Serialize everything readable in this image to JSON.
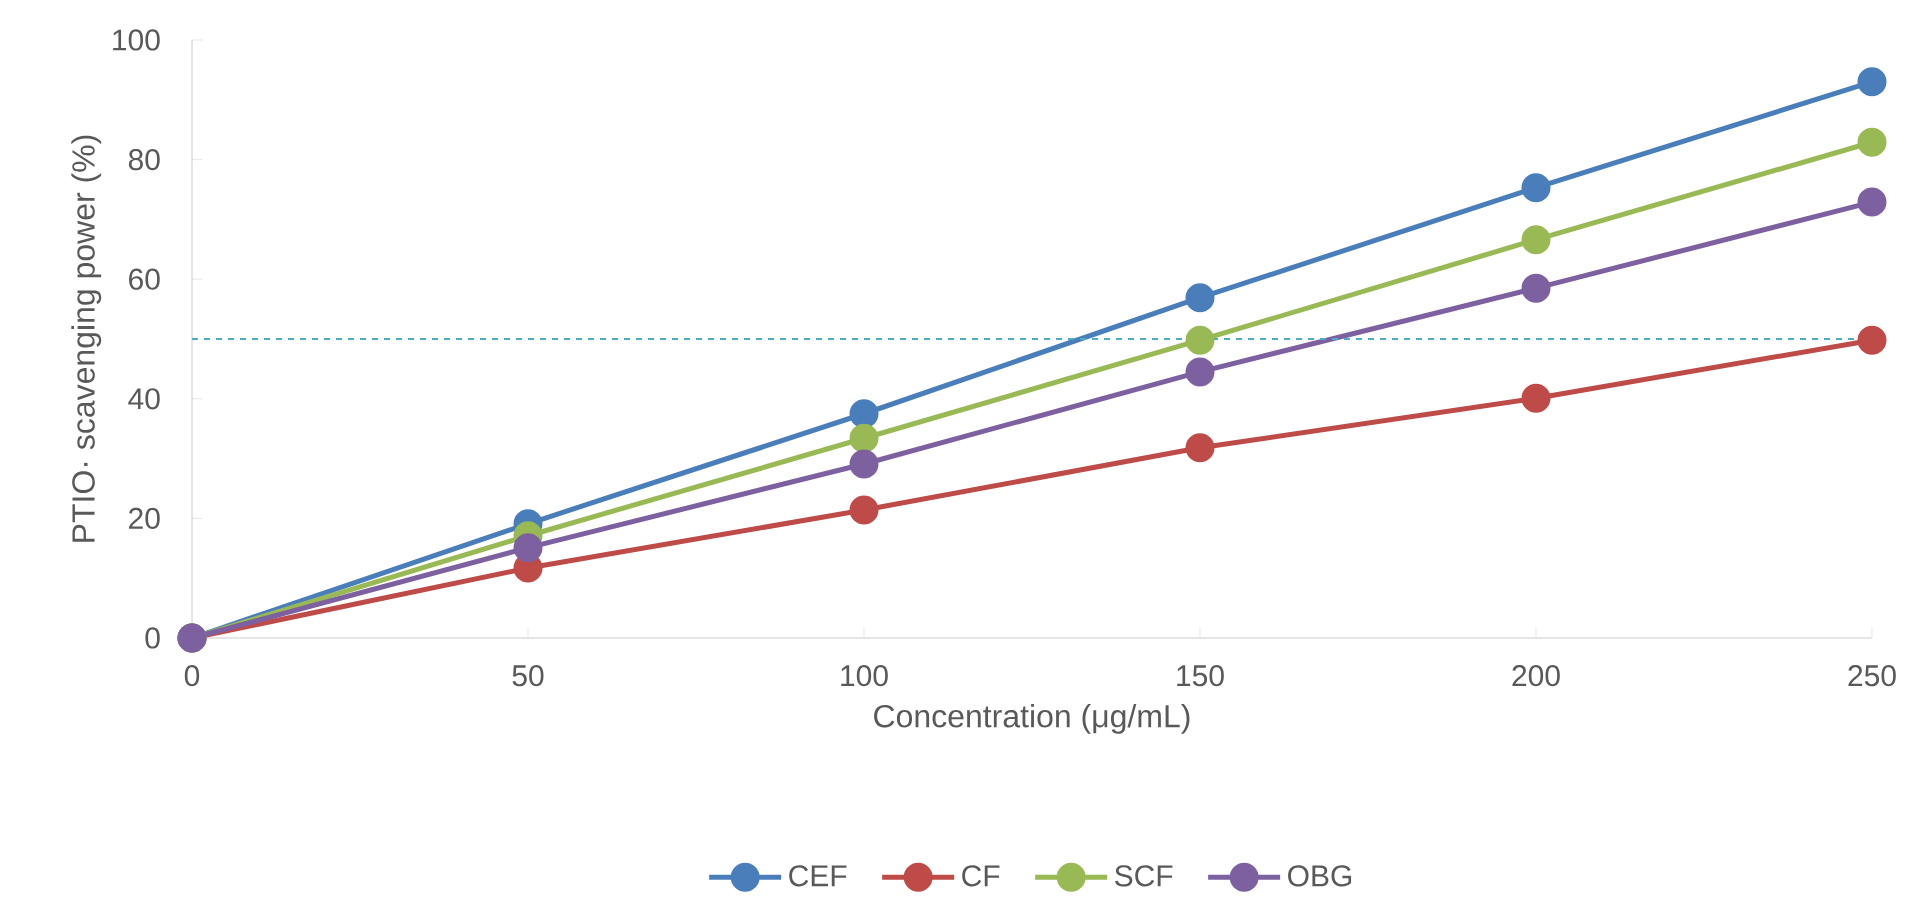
{
  "chart_data": {
    "type": "line",
    "xlabel": "Concentration (μg/mL)",
    "ylabel": "PTIO· scavenging power (%)",
    "x": [
      0,
      50,
      100,
      150,
      200,
      250
    ],
    "xlim": [
      0,
      250
    ],
    "xticks": [
      0,
      50,
      100,
      150,
      200,
      250
    ],
    "ylim": [
      0,
      100
    ],
    "yticks": [
      0,
      20,
      40,
      60,
      80,
      100
    ],
    "series": [
      {
        "name": "CEF",
        "color": "#4a7ebb",
        "values": [
          0,
          19.1,
          37.5,
          56.9,
          75.3,
          93.0
        ]
      },
      {
        "name": "CF",
        "color": "#be4b48",
        "values": [
          0,
          11.7,
          21.4,
          31.8,
          40.1,
          49.8
        ]
      },
      {
        "name": "SCF",
        "color": "#98b954",
        "values": [
          0,
          17.1,
          33.4,
          49.8,
          66.6,
          82.9
        ]
      },
      {
        "name": "OBG",
        "color": "#7d60a0",
        "values": [
          0,
          15.1,
          29.1,
          44.5,
          58.5,
          72.9
        ]
      }
    ],
    "ref_lines": [
      {
        "axis": "y",
        "value": 50,
        "color": "#4bacc6",
        "line_style": "dashed"
      }
    ],
    "marker": "circle",
    "line_style": "solid",
    "grid": false,
    "legend": "bottom"
  }
}
